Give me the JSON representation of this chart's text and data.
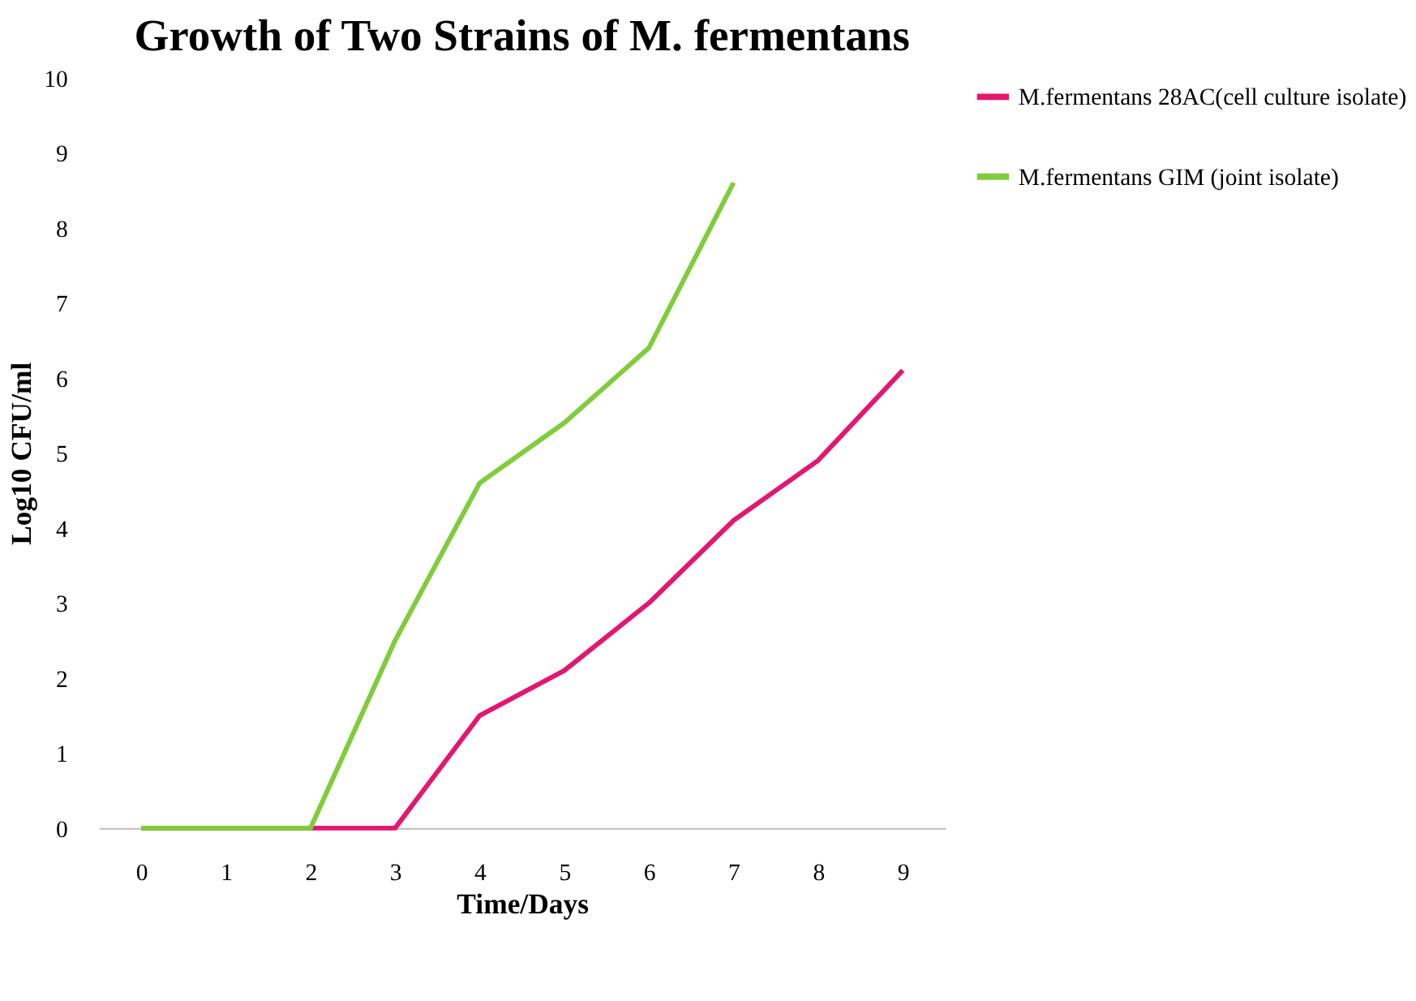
{
  "chart_data": {
    "type": "line",
    "title": "Growth of Two Strains of M. fermentans",
    "xlabel": "Time/Days",
    "ylabel": "Log10 CFU/ml",
    "xlim": [
      -0.5,
      9.5
    ],
    "xticks": [
      0,
      1,
      2,
      3,
      4,
      5,
      6,
      7,
      8,
      9
    ],
    "ylim": [
      0,
      10
    ],
    "yticks": [
      0,
      1,
      2,
      3,
      4,
      5,
      6,
      7,
      8,
      9,
      10
    ],
    "grid": false,
    "legend": "right",
    "marker": "none",
    "line_style": "solid",
    "series": [
      {
        "name": "M.fermentans 28AC(cell culture isolate)",
        "color": "#e3176f",
        "x": [
          0,
          1,
          2,
          3,
          4,
          5,
          6,
          7,
          8,
          9
        ],
        "values": [
          0,
          0,
          0,
          0,
          1.5,
          2.1,
          3,
          4.1,
          4.9,
          6.1
        ]
      },
      {
        "name": "M.fermentans GIM (joint isolate)",
        "color": "#80cc3a",
        "x": [
          0,
          1,
          2,
          3,
          4,
          5,
          6,
          7
        ],
        "values": [
          0,
          0,
          0,
          2.5,
          4.6,
          5.4,
          6.4,
          8.6
        ]
      }
    ]
  }
}
